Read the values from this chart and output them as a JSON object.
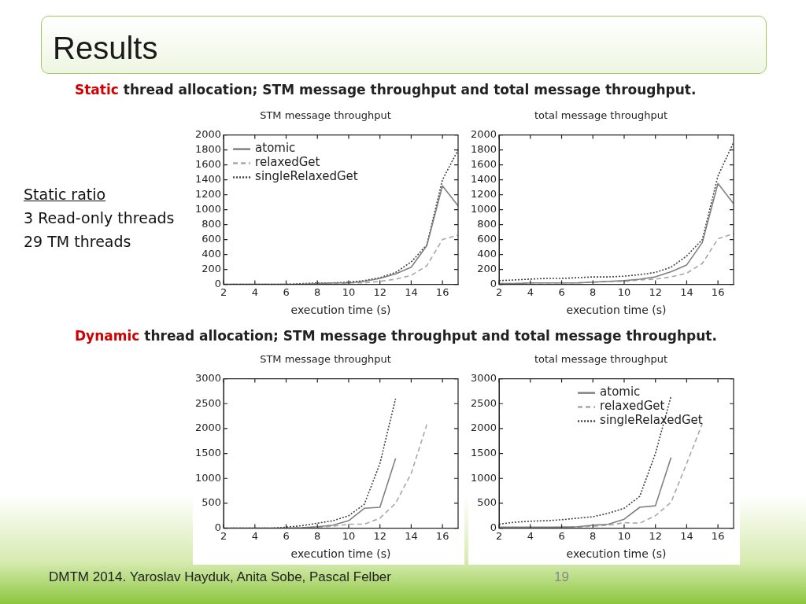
{
  "chart_data": [
    {
      "type": "line",
      "subtitle": "Static thread allocation; STM message throughput and total message throughput.",
      "title": "STM message throughput",
      "xlabel": "execution time (s)",
      "xlim": [
        2,
        17
      ],
      "xticks": [
        2,
        4,
        6,
        8,
        10,
        12,
        14,
        16
      ],
      "ylim": [
        0,
        2000
      ],
      "yticks": [
        0,
        200,
        400,
        600,
        800,
        1000,
        1200,
        1400,
        1600,
        1800,
        2000
      ],
      "grid": false,
      "legend": "top left",
      "marker": "none",
      "annotations": [
        "Results",
        "Static ratio",
        "3 Read-only threads",
        "29 TM threads",
        "DMTM 2014. Yaroslav Hayduk, Anita Sobe, Pascal Felber",
        "19"
      ],
      "x": [
        2,
        3,
        4,
        5,
        6,
        7,
        8,
        9,
        10,
        11,
        12,
        13,
        14,
        15,
        16,
        17
      ],
      "series": [
        {
          "name": "atomic",
          "color": "#808080",
          "line_style": "solid",
          "values": [
            0,
            0,
            0,
            0,
            0,
            0,
            10,
            20,
            20,
            40,
            80,
            140,
            230,
            520,
            1320,
            1050
          ]
        },
        {
          "name": "relaxedGet",
          "color": "#a8a8a8",
          "line_style": "dashed",
          "values": [
            0,
            0,
            0,
            0,
            0,
            0,
            10,
            10,
            20,
            20,
            40,
            70,
            120,
            250,
            600,
            660
          ]
        },
        {
          "name": "singleRelaxedGet",
          "color": "#404040",
          "line_style": "dotted",
          "values": [
            0,
            0,
            0,
            0,
            0,
            10,
            20,
            20,
            30,
            50,
            90,
            160,
            300,
            530,
            1400,
            1800
          ]
        }
      ]
    },
    {
      "type": "line",
      "title": "total message throughput",
      "xlabel": "execution time (s)",
      "xlim": [
        2,
        17
      ],
      "xticks": [
        2,
        4,
        6,
        8,
        10,
        12,
        14,
        16
      ],
      "ylim": [
        0,
        2000
      ],
      "yticks": [
        0,
        200,
        400,
        600,
        800,
        1000,
        1200,
        1400,
        1600,
        1800,
        2000
      ],
      "grid": false,
      "marker": "none",
      "x": [
        2,
        3,
        4,
        5,
        6,
        7,
        8,
        9,
        10,
        11,
        12,
        13,
        14,
        15,
        16,
        17
      ],
      "series": [
        {
          "color": "#808080",
          "line_style": "solid",
          "values": [
            10,
            10,
            20,
            20,
            20,
            20,
            30,
            40,
            50,
            70,
            100,
            170,
            260,
            560,
            1350,
            1080
          ]
        },
        {
          "color": "#a8a8a8",
          "line_style": "dashed",
          "values": [
            10,
            10,
            20,
            20,
            20,
            20,
            30,
            40,
            40,
            60,
            70,
            100,
            150,
            280,
            610,
            680
          ]
        },
        {
          "color": "#404040",
          "line_style": "dotted",
          "values": [
            50,
            60,
            70,
            80,
            80,
            90,
            100,
            100,
            110,
            130,
            160,
            230,
            380,
            600,
            1450,
            1900
          ]
        }
      ]
    },
    {
      "type": "line",
      "subtitle": "Dynamic thread allocation; STM message throughput and total message throughput.",
      "title": "STM message throughput",
      "xlabel": "execution time (s)",
      "xlim": [
        2,
        17
      ],
      "xticks": [
        2,
        4,
        6,
        8,
        10,
        12,
        14,
        16
      ],
      "ylim": [
        0,
        3000
      ],
      "yticks": [
        0,
        500,
        1000,
        1500,
        2000,
        2500,
        3000
      ],
      "grid": false,
      "marker": "none",
      "x": [
        2,
        3,
        4,
        5,
        6,
        7,
        8,
        9,
        10,
        11,
        12,
        13,
        14,
        15
      ],
      "series": [
        {
          "color": "#808080",
          "line_style": "solid",
          "values": [
            0,
            0,
            0,
            0,
            0,
            10,
            30,
            60,
            150,
            400,
            420,
            1400,
            null,
            null
          ]
        },
        {
          "color": "#a8a8a8",
          "line_style": "dashed",
          "values": [
            0,
            0,
            0,
            0,
            0,
            10,
            20,
            40,
            80,
            80,
            200,
            500,
            1100,
            2080
          ]
        },
        {
          "color": "#404040",
          "line_style": "dotted",
          "values": [
            0,
            0,
            0,
            0,
            20,
            50,
            100,
            150,
            250,
            480,
            1300,
            2600,
            null,
            null
          ]
        }
      ]
    },
    {
      "type": "line",
      "title": "total message throughput",
      "xlabel": "execution time (s)",
      "xlim": [
        2,
        17
      ],
      "xticks": [
        2,
        4,
        6,
        8,
        10,
        12,
        14,
        16
      ],
      "ylim": [
        0,
        3000
      ],
      "yticks": [
        0,
        500,
        1000,
        1500,
        2000,
        2500,
        3000
      ],
      "grid": false,
      "legend": "top",
      "marker": "none",
      "x": [
        2,
        3,
        4,
        5,
        6,
        7,
        8,
        9,
        10,
        11,
        12,
        13,
        14,
        15
      ],
      "series": [
        {
          "name": "atomic",
          "color": "#808080",
          "line_style": "solid",
          "values": [
            20,
            20,
            20,
            20,
            20,
            30,
            60,
            80,
            180,
            420,
            450,
            1420,
            null,
            null
          ]
        },
        {
          "name": "relaxedGet",
          "color": "#a8a8a8",
          "line_style": "dashed",
          "values": [
            10,
            10,
            10,
            10,
            20,
            20,
            40,
            60,
            110,
            100,
            250,
            520,
            1300,
            2100
          ]
        },
        {
          "name": "singleRelaxedGet",
          "color": "#404040",
          "line_style": "dotted",
          "values": [
            80,
            120,
            140,
            150,
            170,
            200,
            230,
            300,
            400,
            640,
            1500,
            2650,
            null,
            null
          ]
        }
      ]
    }
  ]
}
